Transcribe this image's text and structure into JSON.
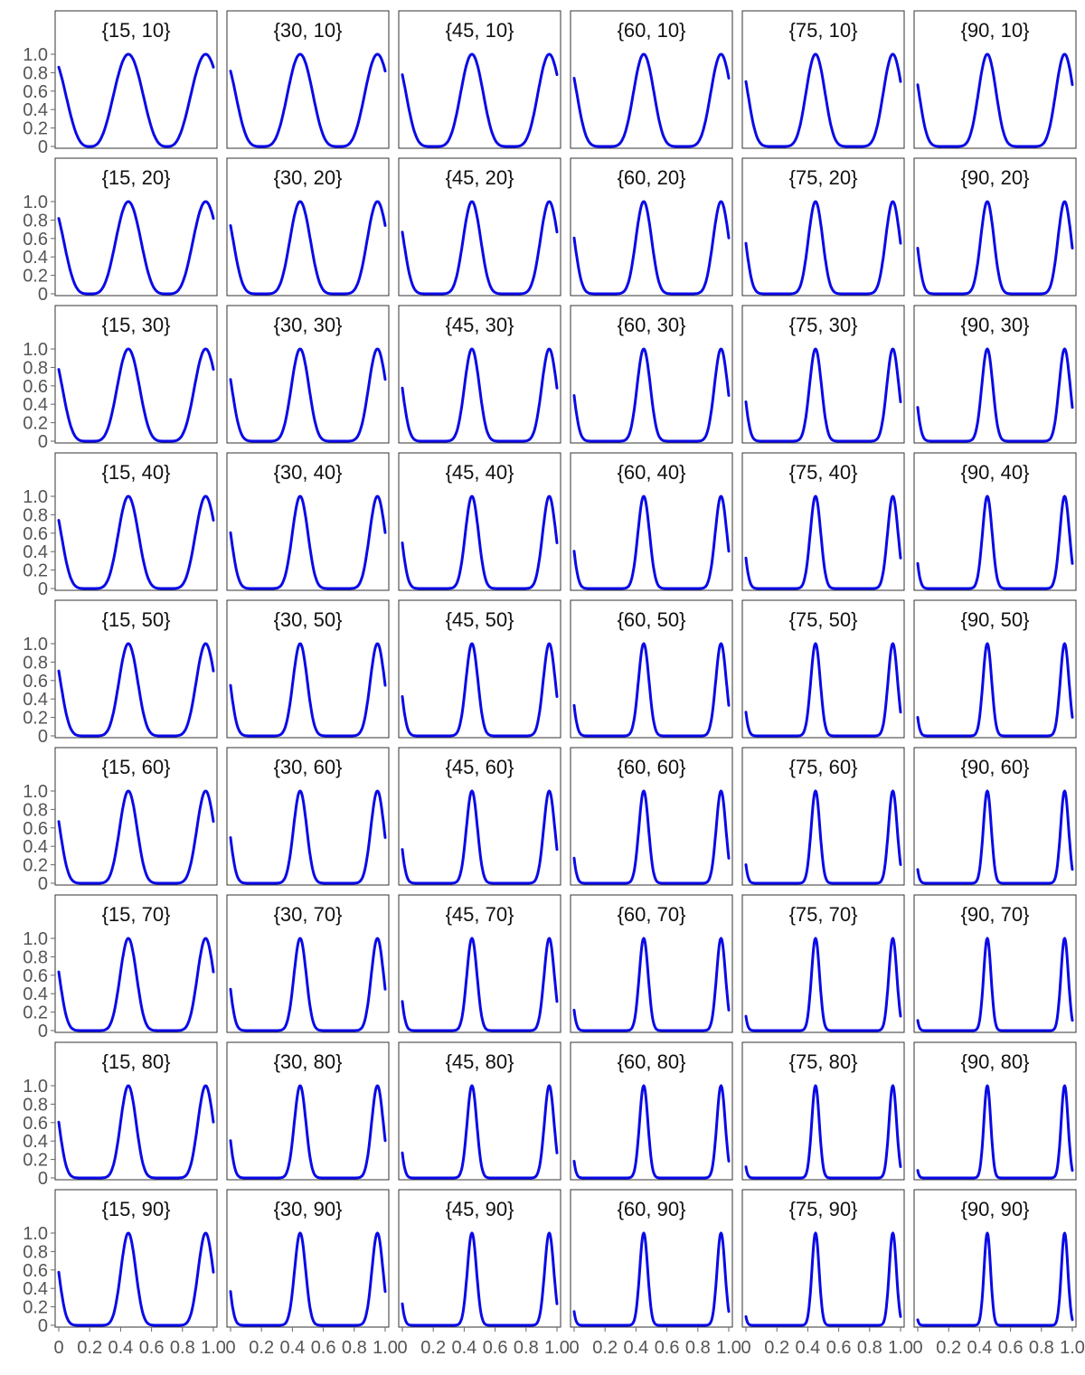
{
  "chart_data": {
    "type": "line",
    "layout": "facet-grid",
    "rows": 9,
    "cols": 6,
    "x_ticks": [
      0,
      0.2,
      0.4,
      0.6,
      0.8,
      1.0
    ],
    "x_tick_labels": [
      "0",
      "0.2",
      "0.4",
      "0.6",
      "0.8",
      "1.0"
    ],
    "y_ticks": [
      0,
      0.2,
      0.4,
      0.6,
      0.8,
      1.0
    ],
    "y_tick_labels": [
      "0",
      "0.2",
      "0.4",
      "0.6",
      "0.8",
      "1.0"
    ],
    "xlim": [
      0,
      1
    ],
    "ylim": [
      0,
      1
    ],
    "line_color": "#0a0ae6",
    "panels": [
      {
        "label": "{15, 10}",
        "a": 15,
        "b": 10
      },
      {
        "label": "{30, 10}",
        "a": 30,
        "b": 10
      },
      {
        "label": "{45, 10}",
        "a": 45,
        "b": 10
      },
      {
        "label": "{60, 10}",
        "a": 60,
        "b": 10
      },
      {
        "label": "{75, 10}",
        "a": 75,
        "b": 10
      },
      {
        "label": "{90, 10}",
        "a": 90,
        "b": 10
      },
      {
        "label": "{15, 20}",
        "a": 15,
        "b": 20
      },
      {
        "label": "{30, 20}",
        "a": 30,
        "b": 20
      },
      {
        "label": "{45, 20}",
        "a": 45,
        "b": 20
      },
      {
        "label": "{60, 20}",
        "a": 60,
        "b": 20
      },
      {
        "label": "{75, 20}",
        "a": 75,
        "b": 20
      },
      {
        "label": "{90, 20}",
        "a": 90,
        "b": 20
      },
      {
        "label": "{15, 30}",
        "a": 15,
        "b": 30
      },
      {
        "label": "{30, 30}",
        "a": 30,
        "b": 30
      },
      {
        "label": "{45, 30}",
        "a": 45,
        "b": 30
      },
      {
        "label": "{60, 30}",
        "a": 60,
        "b": 30
      },
      {
        "label": "{75, 30}",
        "a": 75,
        "b": 30
      },
      {
        "label": "{90, 30}",
        "a": 90,
        "b": 30
      },
      {
        "label": "{15, 40}",
        "a": 15,
        "b": 40
      },
      {
        "label": "{30, 40}",
        "a": 30,
        "b": 40
      },
      {
        "label": "{45, 40}",
        "a": 45,
        "b": 40
      },
      {
        "label": "{60, 40}",
        "a": 60,
        "b": 40
      },
      {
        "label": "{75, 40}",
        "a": 75,
        "b": 40
      },
      {
        "label": "{90, 40}",
        "a": 90,
        "b": 40
      },
      {
        "label": "{15, 50}",
        "a": 15,
        "b": 50
      },
      {
        "label": "{30, 50}",
        "a": 30,
        "b": 50
      },
      {
        "label": "{45, 50}",
        "a": 45,
        "b": 50
      },
      {
        "label": "{60, 50}",
        "a": 60,
        "b": 50
      },
      {
        "label": "{75, 50}",
        "a": 75,
        "b": 50
      },
      {
        "label": "{90, 50}",
        "a": 90,
        "b": 50
      },
      {
        "label": "{15, 60}",
        "a": 15,
        "b": 60
      },
      {
        "label": "{30, 60}",
        "a": 30,
        "b": 60
      },
      {
        "label": "{45, 60}",
        "a": 45,
        "b": 60
      },
      {
        "label": "{60, 60}",
        "a": 60,
        "b": 60
      },
      {
        "label": "{75, 60}",
        "a": 75,
        "b": 60
      },
      {
        "label": "{90, 60}",
        "a": 90,
        "b": 60
      },
      {
        "label": "{15, 70}",
        "a": 15,
        "b": 70
      },
      {
        "label": "{30, 70}",
        "a": 30,
        "b": 70
      },
      {
        "label": "{45, 70}",
        "a": 45,
        "b": 70
      },
      {
        "label": "{60, 70}",
        "a": 60,
        "b": 70
      },
      {
        "label": "{75, 70}",
        "a": 75,
        "b": 70
      },
      {
        "label": "{90, 70}",
        "a": 90,
        "b": 70
      },
      {
        "label": "{15, 80}",
        "a": 15,
        "b": 80
      },
      {
        "label": "{30, 80}",
        "a": 30,
        "b": 80
      },
      {
        "label": "{45, 80}",
        "a": 45,
        "b": 80
      },
      {
        "label": "{60, 80}",
        "a": 60,
        "b": 80
      },
      {
        "label": "{75, 80}",
        "a": 75,
        "b": 80
      },
      {
        "label": "{90, 80}",
        "a": 90,
        "b": 80
      },
      {
        "label": "{15, 90}",
        "a": 15,
        "b": 90
      },
      {
        "label": "{30, 90}",
        "a": 30,
        "b": 90
      },
      {
        "label": "{45, 90}",
        "a": 45,
        "b": 90
      },
      {
        "label": "{60, 90}",
        "a": 60,
        "b": 90
      },
      {
        "label": "{75, 90}",
        "a": 75,
        "b": 90
      },
      {
        "label": "{90, 90}",
        "a": 90,
        "b": 90
      }
    ]
  }
}
